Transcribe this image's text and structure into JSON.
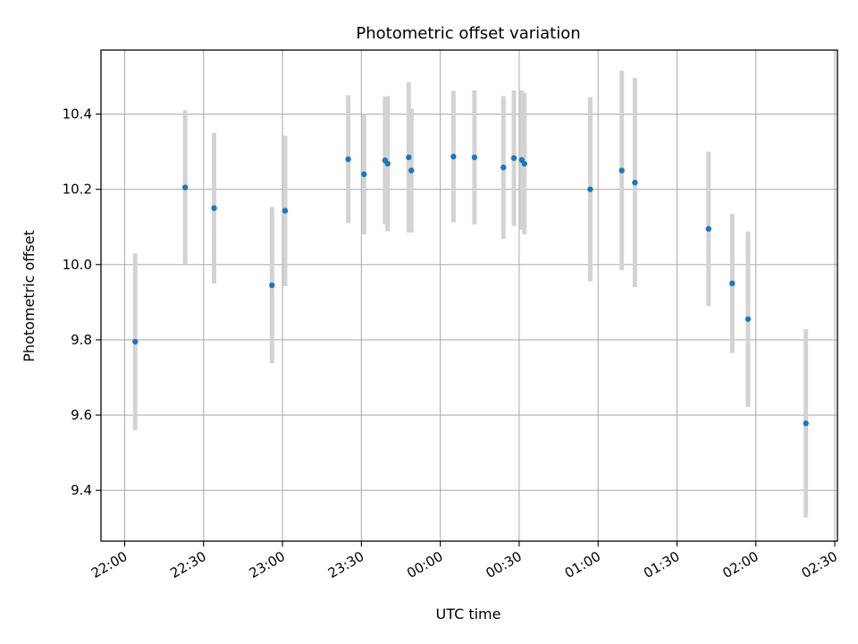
{
  "chart_data": {
    "type": "scatter",
    "title": "Photometric offset variation",
    "xlabel": "UTC time",
    "ylabel": "Photometric offset",
    "x_unit": "UTC time (hh:mm)",
    "xlim": [
      "21:51",
      "02:31"
    ],
    "ylim": [
      9.265,
      10.57
    ],
    "grid": true,
    "x_ticks": [
      "22:00",
      "22:30",
      "23:00",
      "23:30",
      "00:00",
      "00:30",
      "01:00",
      "01:30",
      "02:00",
      "02:30"
    ],
    "y_ticks": [
      "9.4",
      "9.6",
      "9.8",
      "10.0",
      "10.2",
      "10.4"
    ],
    "marker_color": "#1f77b4",
    "errorbar_color": "#d3d3d3",
    "grid_color": "#b0b0b0",
    "points": [
      {
        "x": "22:04",
        "y": 9.795,
        "err": 0.235
      },
      {
        "x": "22:23",
        "y": 10.205,
        "err": 0.205
      },
      {
        "x": "22:34",
        "y": 10.15,
        "err": 0.2
      },
      {
        "x": "22:56",
        "y": 9.945,
        "err": 0.208
      },
      {
        "x": "23:01",
        "y": 10.143,
        "err": 0.2
      },
      {
        "x": "23:25",
        "y": 10.28,
        "err": 0.17
      },
      {
        "x": "23:31",
        "y": 10.24,
        "err": 0.16
      },
      {
        "x": "23:39",
        "y": 10.277,
        "err": 0.17
      },
      {
        "x": "23:40",
        "y": 10.268,
        "err": 0.18
      },
      {
        "x": "23:48",
        "y": 10.285,
        "err": 0.2
      },
      {
        "x": "23:49",
        "y": 10.25,
        "err": 0.165
      },
      {
        "x": "00:05",
        "y": 10.287,
        "err": 0.175
      },
      {
        "x": "00:13",
        "y": 10.285,
        "err": 0.178
      },
      {
        "x": "00:24",
        "y": 10.258,
        "err": 0.19
      },
      {
        "x": "00:28",
        "y": 10.283,
        "err": 0.18
      },
      {
        "x": "00:31",
        "y": 10.278,
        "err": 0.185
      },
      {
        "x": "00:32",
        "y": 10.268,
        "err": 0.188
      },
      {
        "x": "00:57",
        "y": 10.2,
        "err": 0.245
      },
      {
        "x": "01:09",
        "y": 10.25,
        "err": 0.265
      },
      {
        "x": "01:14",
        "y": 10.218,
        "err": 0.278
      },
      {
        "x": "01:42",
        "y": 10.095,
        "err": 0.205
      },
      {
        "x": "01:51",
        "y": 9.95,
        "err": 0.185
      },
      {
        "x": "01:57",
        "y": 9.855,
        "err": 0.233
      },
      {
        "x": "02:19",
        "y": 9.578,
        "err": 0.25
      }
    ]
  }
}
